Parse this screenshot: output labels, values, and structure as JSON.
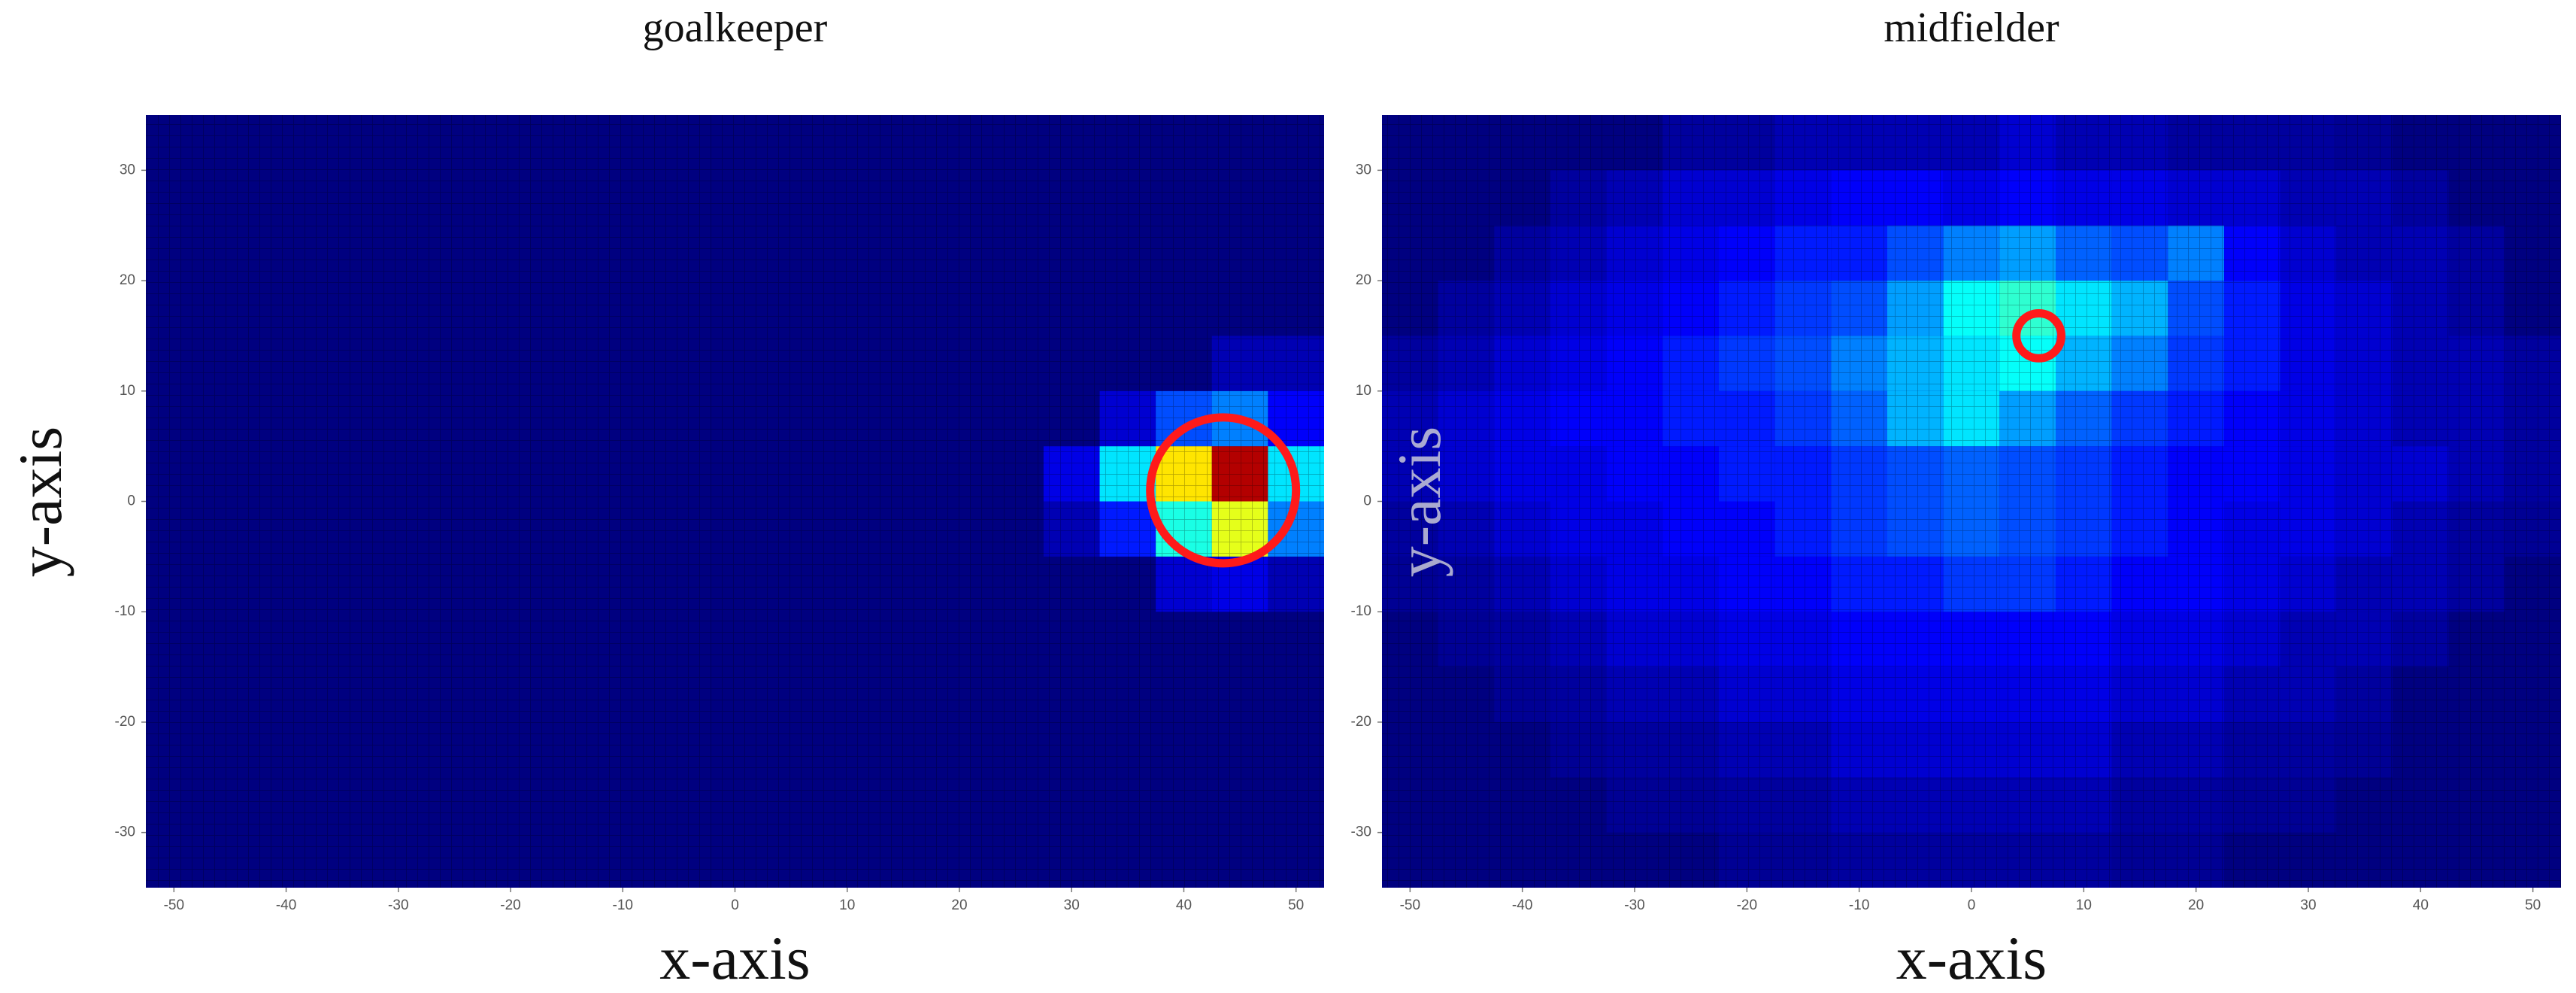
{
  "chart_data": [
    {
      "type": "heatmap",
      "title": "goalkeeper",
      "xlabel": "x-axis",
      "ylabel": "y-axis",
      "xlim": [
        -52.5,
        52.5
      ],
      "ylim": [
        -35,
        35
      ],
      "xticks": [
        -50,
        -40,
        -30,
        -20,
        -10,
        0,
        10,
        20,
        30,
        40,
        50
      ],
      "yticks": [
        -30,
        -20,
        -10,
        0,
        10,
        20,
        30
      ],
      "bin_size": 5,
      "zlim": [
        0,
        1
      ],
      "colormap": "jet",
      "z": [
        [
          0,
          0,
          0,
          0,
          0,
          0,
          0,
          0,
          0,
          0,
          0,
          0,
          0,
          0,
          0,
          0,
          0,
          0,
          0,
          0,
          0
        ],
        [
          0,
          0,
          0,
          0,
          0,
          0,
          0,
          0,
          0,
          0,
          0,
          0,
          0,
          0,
          0,
          0,
          0,
          0,
          0,
          0,
          0
        ],
        [
          0,
          0,
          0,
          0,
          0,
          0,
          0,
          0,
          0,
          0,
          0,
          0,
          0,
          0,
          0,
          0,
          0,
          0,
          0,
          0,
          0
        ],
        [
          0,
          0,
          0,
          0,
          0,
          0,
          0,
          0,
          0,
          0,
          0,
          0,
          0,
          0,
          0,
          0,
          0,
          0,
          0,
          0,
          0
        ],
        [
          0,
          0,
          0,
          0,
          0,
          0,
          0,
          0,
          0,
          0,
          0,
          0,
          0,
          0,
          0,
          0,
          0,
          0,
          0,
          0,
          0
        ],
        [
          0,
          0,
          0,
          0,
          0,
          0,
          0,
          0,
          0,
          0,
          0,
          0,
          0,
          0,
          0,
          0,
          0,
          0,
          0.08,
          0.1,
          0.05
        ],
        [
          0,
          0,
          0,
          0,
          0,
          0,
          0,
          0,
          0,
          0,
          0,
          0,
          0,
          0,
          0,
          0,
          0.05,
          0.15,
          0.4,
          0.6,
          0.25
        ],
        [
          0,
          0,
          0,
          0,
          0,
          0,
          0,
          0,
          0,
          0,
          0,
          0,
          0,
          0,
          0,
          0,
          0.1,
          0.35,
          0.65,
          0.95,
          0.35
        ],
        [
          0,
          0,
          0,
          0,
          0,
          0,
          0,
          0,
          0,
          0,
          0,
          0,
          0,
          0,
          0,
          0,
          0,
          0.08,
          0.2,
          0.25,
          0.12
        ],
        [
          0,
          0,
          0,
          0,
          0,
          0,
          0,
          0,
          0,
          0,
          0,
          0,
          0,
          0,
          0,
          0,
          0,
          0,
          0,
          0.05,
          0.05
        ],
        [
          0,
          0,
          0,
          0,
          0,
          0,
          0,
          0,
          0,
          0,
          0,
          0,
          0,
          0,
          0,
          0,
          0,
          0,
          0,
          0,
          0
        ],
        [
          0,
          0,
          0,
          0,
          0,
          0,
          0,
          0,
          0,
          0,
          0,
          0,
          0,
          0,
          0,
          0,
          0,
          0,
          0,
          0,
          0
        ],
        [
          0,
          0,
          0,
          0,
          0,
          0,
          0,
          0,
          0,
          0,
          0,
          0,
          0,
          0,
          0,
          0,
          0,
          0,
          0,
          0,
          0
        ],
        [
          0,
          0,
          0,
          0,
          0,
          0,
          0,
          0,
          0,
          0,
          0,
          0,
          0,
          0,
          0,
          0,
          0,
          0,
          0,
          0,
          0
        ]
      ],
      "highlight": {
        "x": 43.5,
        "y": 1,
        "r": 6.5,
        "color": "#ff1a1a"
      }
    },
    {
      "type": "heatmap",
      "title": "midfielder",
      "xlabel": "x-axis",
      "ylabel": "y-axis",
      "xlim": [
        -52.5,
        52.5
      ],
      "ylim": [
        -35,
        35
      ],
      "xticks": [
        -50,
        -40,
        -30,
        -20,
        -10,
        0,
        10,
        20,
        30,
        40,
        50
      ],
      "yticks": [
        -30,
        -20,
        -10,
        0,
        10,
        20,
        30
      ],
      "bin_size": 5,
      "zlim": [
        0,
        1
      ],
      "colormap": "jet",
      "z": [
        [
          0,
          0,
          0,
          0,
          0,
          0,
          0.02,
          0.02,
          0.03,
          0.03,
          0.03,
          0.03,
          0.03,
          0.02,
          0.02,
          0,
          0,
          0,
          0,
          0,
          0
        ],
        [
          0,
          0,
          0,
          0,
          0.02,
          0.02,
          0.03,
          0.03,
          0.05,
          0.05,
          0.05,
          0.05,
          0.05,
          0.03,
          0.03,
          0.02,
          0.02,
          0,
          0,
          0,
          0
        ],
        [
          0,
          0,
          0,
          0.02,
          0.03,
          0.03,
          0.05,
          0.05,
          0.08,
          0.08,
          0.08,
          0.08,
          0.08,
          0.05,
          0.05,
          0.03,
          0.03,
          0.02,
          0,
          0,
          0
        ],
        [
          0,
          0,
          0.02,
          0.03,
          0.05,
          0.05,
          0.08,
          0.08,
          0.1,
          0.1,
          0.1,
          0.1,
          0.1,
          0.08,
          0.08,
          0.05,
          0.05,
          0.03,
          0,
          0,
          0
        ],
        [
          0,
          0.02,
          0.03,
          0.05,
          0.08,
          0.08,
          0.1,
          0.1,
          0.12,
          0.12,
          0.12,
          0.12,
          0.12,
          0.1,
          0.1,
          0.08,
          0.05,
          0.05,
          0.03,
          0,
          0
        ],
        [
          0.02,
          0.03,
          0.05,
          0.08,
          0.1,
          0.1,
          0.12,
          0.12,
          0.15,
          0.15,
          0.18,
          0.18,
          0.15,
          0.12,
          0.12,
          0.1,
          0.08,
          0.05,
          0.05,
          0.03,
          0
        ],
        [
          0.03,
          0.05,
          0.08,
          0.1,
          0.1,
          0.12,
          0.12,
          0.15,
          0.18,
          0.2,
          0.22,
          0.2,
          0.18,
          0.15,
          0.12,
          0.1,
          0.1,
          0.08,
          0.05,
          0.03,
          0.02
        ],
        [
          0.05,
          0.08,
          0.1,
          0.1,
          0.12,
          0.12,
          0.15,
          0.15,
          0.18,
          0.2,
          0.22,
          0.2,
          0.18,
          0.15,
          0.12,
          0.12,
          0.1,
          0.08,
          0.08,
          0.05,
          0.03
        ],
        [
          0.05,
          0.08,
          0.1,
          0.12,
          0.12,
          0.15,
          0.15,
          0.18,
          0.22,
          0.3,
          0.35,
          0.28,
          0.22,
          0.18,
          0.15,
          0.12,
          0.1,
          0.08,
          0.05,
          0.05,
          0.03
        ],
        [
          0.03,
          0.05,
          0.08,
          0.1,
          0.12,
          0.15,
          0.18,
          0.2,
          0.25,
          0.3,
          0.35,
          0.38,
          0.3,
          0.25,
          0.18,
          0.15,
          0.1,
          0.08,
          0.05,
          0.05,
          0.03
        ],
        [
          0,
          0.03,
          0.05,
          0.08,
          0.1,
          0.12,
          0.15,
          0.18,
          0.2,
          0.28,
          0.38,
          0.42,
          0.35,
          0.3,
          0.2,
          0.15,
          0.1,
          0.08,
          0.05,
          0.03,
          0
        ],
        [
          0,
          0,
          0.03,
          0.05,
          0.08,
          0.1,
          0.12,
          0.15,
          0.15,
          0.2,
          0.25,
          0.28,
          0.22,
          0.2,
          0.25,
          0.12,
          0.08,
          0.05,
          0.05,
          0.03,
          0
        ],
        [
          0,
          0,
          0,
          0.03,
          0.05,
          0.08,
          0.08,
          0.1,
          0.12,
          0.12,
          0.1,
          0.12,
          0.1,
          0.1,
          0.08,
          0.08,
          0.05,
          0.05,
          0.03,
          0,
          0
        ],
        [
          0,
          0,
          0,
          0,
          0,
          0.03,
          0.03,
          0.05,
          0.05,
          0.05,
          0.05,
          0.08,
          0.05,
          0.05,
          0.03,
          0.03,
          0.03,
          0.02,
          0,
          0,
          0
        ]
      ],
      "highlight": {
        "x": 6,
        "y": 15,
        "r": 2,
        "color": "#ff1a1a"
      }
    }
  ]
}
